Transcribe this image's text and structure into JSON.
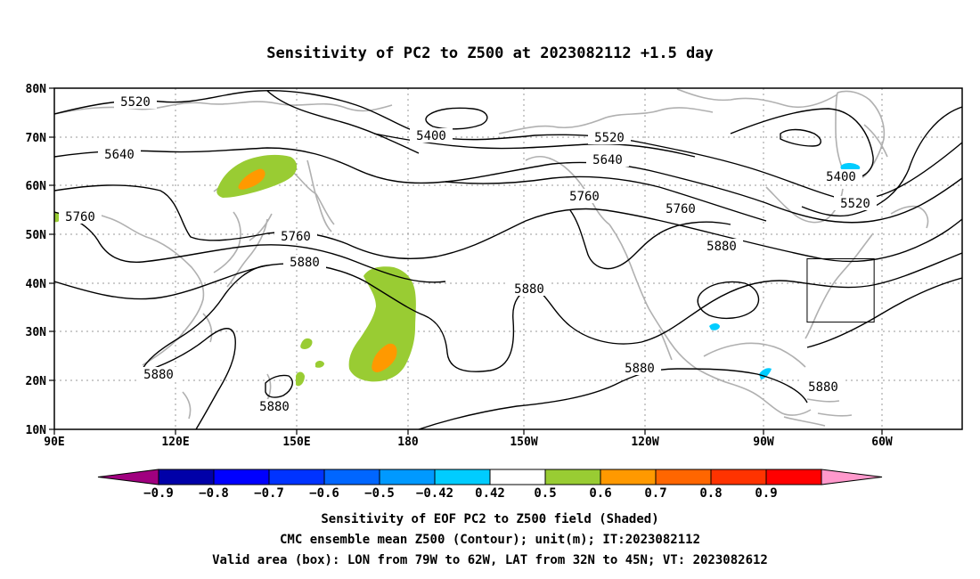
{
  "title": "Sensitivity of PC2 to Z500 at 2023082112 +1.5 day",
  "lat_labels": [
    "80N",
    "70N",
    "60N",
    "50N",
    "40N",
    "30N",
    "20N",
    "10N"
  ],
  "lon_labels": [
    "90E",
    "120E",
    "150E",
    "180",
    "150W",
    "120W",
    "90W",
    "60W"
  ],
  "contour_labels": {
    "c5520a": "5520",
    "c5400a": "5400",
    "c5520b": "5520",
    "c5640a": "5640",
    "c5640b": "5640",
    "c5760a": "5760",
    "c5760b": "5760",
    "c5760c": "5760",
    "c5880a": "5880",
    "c5880b": "5880",
    "c5880c": "5880",
    "c5880d": "5880",
    "c5880e": "5880",
    "c5880f": "5880",
    "c5880g": "5880",
    "c5400b": "5400",
    "c5520c": "5520",
    "c5760d": "5760"
  },
  "colorbar": {
    "labels": [
      "−0.9",
      "−0.8",
      "−0.7",
      "−0.6",
      "−0.5",
      "−0.42",
      "0.42",
      "0.5",
      "0.6",
      "0.7",
      "0.8",
      "0.9"
    ],
    "colors": [
      "#a0007f",
      "#0000a8",
      "#0000ff",
      "#0033ff",
      "#0066ff",
      "#0099ff",
      "#00ccff",
      "#ffffff",
      "#99cc33",
      "#ff9900",
      "#ff6600",
      "#ff3300",
      "#ff0000",
      "#ff99cc"
    ]
  },
  "captions": [
    "Sensitivity of EOF PC2 to Z500 field (Shaded)",
    "CMC ensemble mean Z500 (Contour); unit(m); IT:2023082112",
    "Valid area (box): LON from 79W to 62W, LAT from 32N to 45N; VT: 2023082612"
  ],
  "valid_box": {
    "lon_west": -79,
    "lon_east": -62,
    "lat_south": 32,
    "lat_north": 45
  }
}
